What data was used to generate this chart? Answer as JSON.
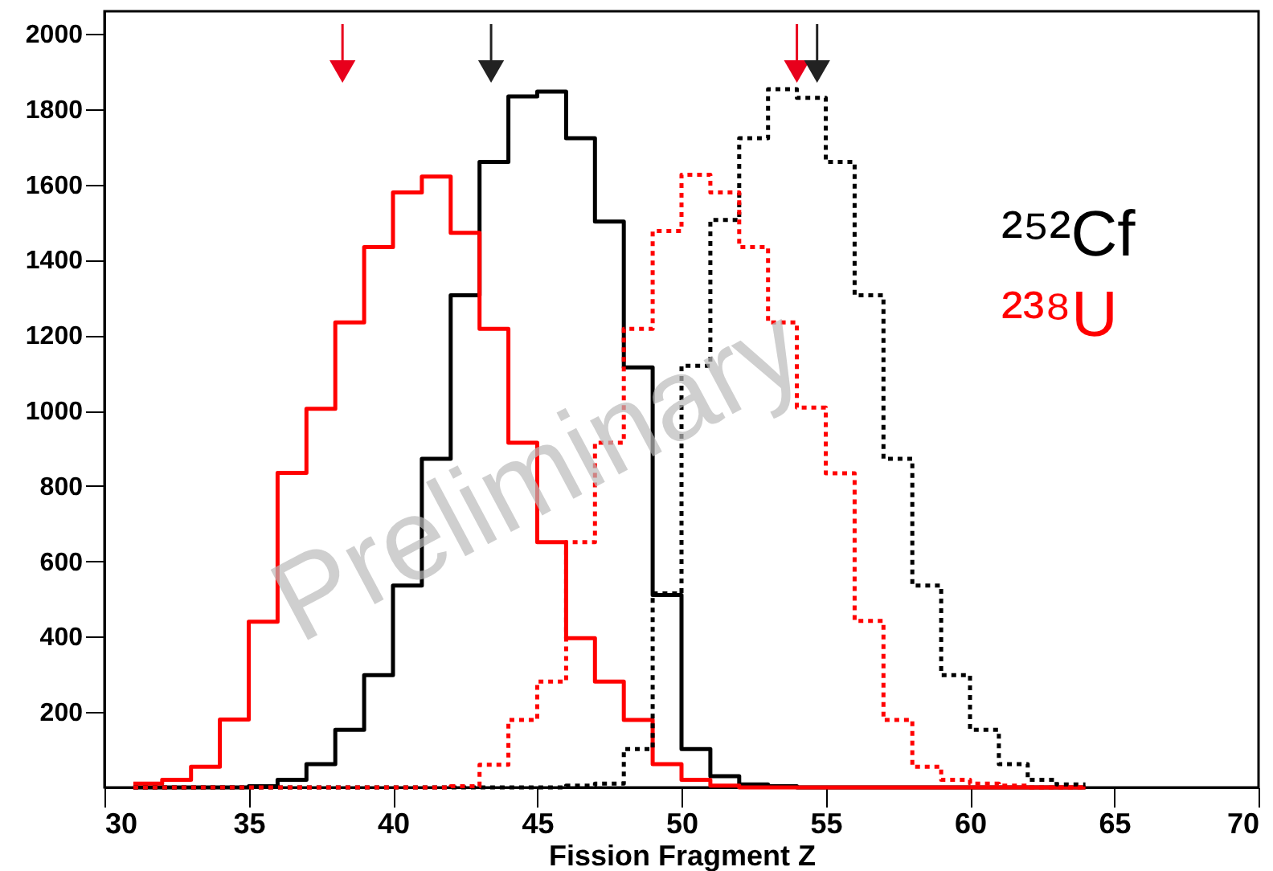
{
  "chart_data": {
    "type": "histogram",
    "xlabel": "Fission Fragment Z",
    "bins": [
      31,
      32,
      33,
      34,
      35,
      36,
      37,
      38,
      39,
      40,
      41,
      42,
      43,
      44,
      45,
      46,
      47,
      48,
      49,
      50,
      51,
      52,
      53,
      54,
      55,
      56,
      57,
      58,
      59,
      60,
      61,
      62,
      63,
      64
    ],
    "series": [
      {
        "name": "²⁵²Cf",
        "color": "#000000",
        "line_style": "solid",
        "values": [
          0,
          0,
          0,
          0,
          3,
          20,
          62,
          153,
          298,
          536,
          872,
          1306,
          1660,
          1834,
          1847,
          1723,
          1502,
          1115,
          511,
          102,
          30,
          8,
          3,
          0,
          0,
          0,
          0,
          0,
          0,
          0,
          0,
          0,
          0
        ]
      },
      {
        "name": "²³⁸U",
        "color": "#ff0000",
        "line_style": "solid",
        "values": [
          10,
          20,
          55,
          180,
          440,
          835,
          1005,
          1234,
          1434,
          1579,
          1621,
          1472,
          1217,
          915,
          651,
          396,
          281,
          179,
          62,
          20,
          5,
          0,
          0,
          0,
          0,
          0,
          0,
          0,
          0,
          0,
          0,
          0,
          0
        ]
      },
      {
        "color": "#000000",
        "line_style": "dotted",
        "values": [
          0,
          0,
          0,
          0,
          0,
          0,
          0,
          0,
          0,
          0,
          0,
          0,
          0,
          0,
          0,
          5,
          10,
          102,
          515,
          1119,
          1506,
          1723,
          1853,
          1830,
          1660,
          1306,
          872,
          536,
          298,
          153,
          62,
          20,
          8
        ]
      },
      {
        "color": "#ff0000",
        "line_style": "dotted",
        "values": [
          0,
          0,
          0,
          0,
          0,
          0,
          0,
          0,
          0,
          0,
          0,
          3,
          60,
          179,
          281,
          651,
          915,
          1217,
          1477,
          1626,
          1579,
          1434,
          1234,
          1008,
          834,
          442,
          179,
          55,
          20,
          10,
          5,
          0,
          0
        ]
      },
      {
        "type": "scatter",
        "marker": "triangle",
        "color": "#e8001c",
        "x": [
          38.25,
          54.0
        ],
        "values": [
          1900,
          1900
        ]
      },
      {
        "type": "scatter",
        "marker": "triangle",
        "color": "#222222",
        "x": [
          43.4,
          54.7
        ],
        "values": [
          1900,
          1900
        ]
      }
    ],
    "xlim": [
      30,
      70
    ],
    "xticks": [
      30,
      35,
      40,
      45,
      50,
      55,
      60,
      65,
      70
    ],
    "ylim": [
      0,
      2060
    ],
    "yticks": [
      200,
      400,
      600,
      800,
      1000,
      1200,
      1400,
      1600,
      1800,
      2000
    ],
    "grid": false,
    "legend": "right",
    "annotations": [
      "Preliminary"
    ]
  }
}
